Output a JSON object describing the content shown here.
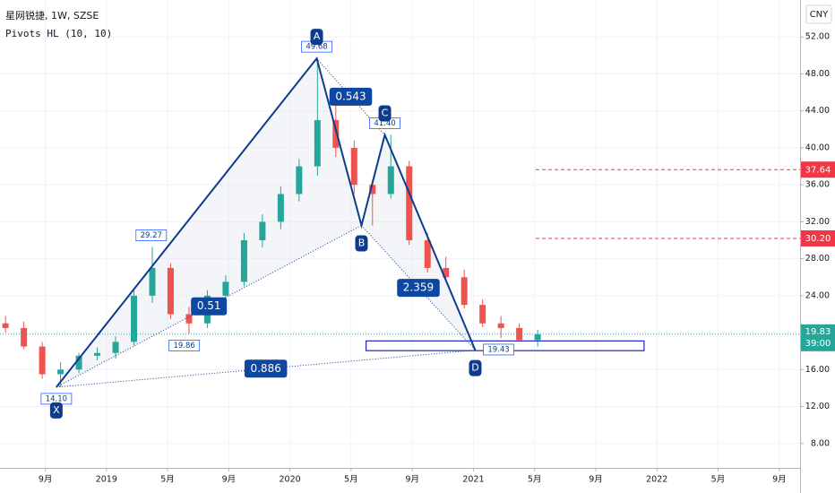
{
  "chart_data": {
    "type": "candlestick",
    "title": "星网锐捷, 1W, SZSE",
    "indicator": "Pivots HL (10, 10)",
    "currency": "CNY",
    "up_color": "#26a69a",
    "down_color": "#ef5350",
    "x": [
      2018.45,
      2018.55,
      2018.65,
      2018.75,
      2018.85,
      2018.95,
      2019.05,
      2019.15,
      2019.25,
      2019.35,
      2019.45,
      2019.55,
      2019.65,
      2019.75,
      2019.85,
      2019.95,
      2020.05,
      2020.15,
      2020.25,
      2020.35,
      2020.45,
      2020.55,
      2020.65,
      2020.75,
      2020.85,
      2020.95,
      2021.05,
      2021.15,
      2021.25,
      2021.35
    ],
    "open": [
      21,
      20.5,
      18.5,
      15.5,
      16,
      17.5,
      17.8,
      19,
      24,
      27,
      22,
      21,
      24,
      25.5,
      30,
      32,
      35,
      38,
      43,
      40,
      36,
      35,
      38,
      30,
      27,
      26,
      23,
      21,
      20.5,
      19.2
    ],
    "high": [
      21.8,
      21.2,
      19,
      16.8,
      17.8,
      18.4,
      19.6,
      24.8,
      29.27,
      27.5,
      22.8,
      24.6,
      26.2,
      30.8,
      32.8,
      35.8,
      38.8,
      49.68,
      45,
      40.8,
      36.5,
      41.4,
      38.6,
      30.8,
      28.2,
      26.8,
      23.6,
      21.8,
      21,
      20.3
    ],
    "low": [
      20,
      18.2,
      15,
      14.1,
      15.6,
      17,
      17.2,
      18.6,
      23.2,
      21.5,
      19.86,
      20.5,
      23.5,
      25,
      29.2,
      31.2,
      34.2,
      37,
      39,
      35,
      31.6,
      34.5,
      29.5,
      26.5,
      25.5,
      22.6,
      20.6,
      19.43,
      19.5,
      18.5
    ],
    "close": [
      20.5,
      18.5,
      15.5,
      16,
      17.5,
      17.8,
      19,
      24,
      27,
      22,
      21,
      24,
      25.5,
      30,
      32,
      35,
      38,
      43,
      40,
      36,
      35,
      38,
      30,
      27,
      26,
      23,
      21,
      20.5,
      19.2,
      19.83
    ],
    "xlim": [
      2018.42,
      2022.78
    ],
    "xticks": [
      {
        "value": 2018.667,
        "label": "9月"
      },
      2019,
      {
        "value": 2019.333,
        "label": "5月"
      },
      {
        "value": 2019.667,
        "label": "9月"
      },
      2020,
      {
        "value": 2020.333,
        "label": "5月"
      },
      {
        "value": 2020.667,
        "label": "9月"
      },
      2021,
      {
        "value": 2021.333,
        "label": "5月"
      },
      {
        "value": 2021.667,
        "label": "9月"
      },
      2022,
      {
        "value": 2022.333,
        "label": "5月"
      },
      {
        "value": 2022.667,
        "label": "9月"
      }
    ],
    "ylim": [
      5.36,
      56
    ],
    "yticks": [
      {
        "value": 8,
        "label": "8.00"
      },
      {
        "value": 12,
        "label": "12.00"
      },
      {
        "value": 16,
        "label": "16.00"
      },
      {
        "value": 20,
        "label": "20.00"
      },
      {
        "value": 24,
        "label": "24.00"
      },
      {
        "value": 28,
        "label": "28.00"
      },
      {
        "value": 32,
        "label": "32.00"
      },
      {
        "value": 36,
        "label": "36.00"
      },
      {
        "value": 40,
        "label": "40.00"
      },
      {
        "value": 44,
        "label": "44.00"
      },
      {
        "value": 48,
        "label": "48.00"
      },
      {
        "value": 52,
        "label": "52.00"
      }
    ],
    "grid": true,
    "pattern": {
      "color": "#0d3c8c",
      "labels": [
        "X",
        "A",
        "B",
        "C",
        "D"
      ],
      "x": [
        2018.727,
        2020.146,
        2020.39,
        2020.517,
        2021.01
      ],
      "y": [
        14.1,
        49.68,
        31.6,
        41.4,
        18.1
      ],
      "ratios": [
        0.543,
        0.51,
        2.359,
        0.886
      ],
      "box_x": [
        2020.415,
        2021.93
      ],
      "box_y": [
        18.05,
        19.1
      ]
    },
    "pivots": {
      "x": [
        2019.244,
        2019.424,
        2018.727,
        2020.146,
        2020.517,
        2021.137
      ],
      "values": [
        29.27,
        19.86,
        14.1,
        49.68,
        41.4,
        19.43
      ],
      "value_labels": [
        "29.27",
        "19.86",
        "14.10",
        "49.68",
        "41.40",
        "19.43"
      ]
    },
    "levels": {
      "x_start": 2021.34,
      "color": "#f23645",
      "values": [
        37.64,
        30.2
      ],
      "value_labels": [
        "37.64",
        "30.20"
      ]
    },
    "last_price": {
      "value": 19.83,
      "label": "19.83",
      "countdown": "39:00",
      "color": "#26a69a"
    }
  }
}
